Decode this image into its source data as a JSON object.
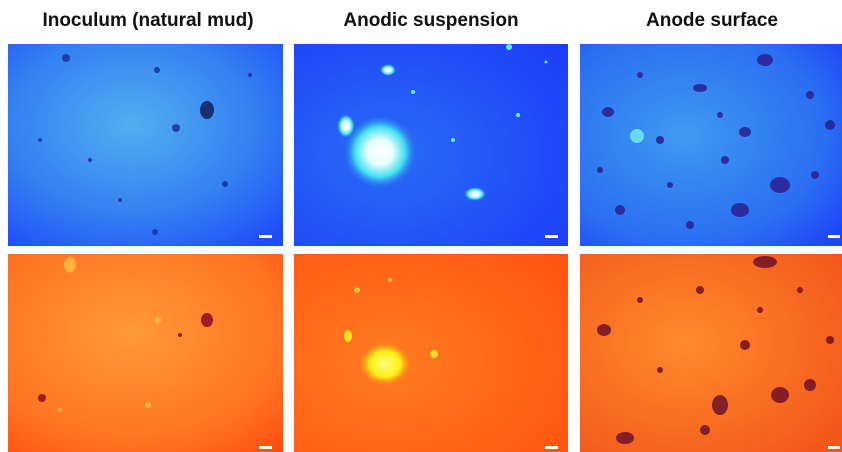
{
  "columns": [
    {
      "title": "Inoculum (natural mud)"
    },
    {
      "title": "Anodic suspension"
    },
    {
      "title": "Anode surface"
    }
  ]
}
